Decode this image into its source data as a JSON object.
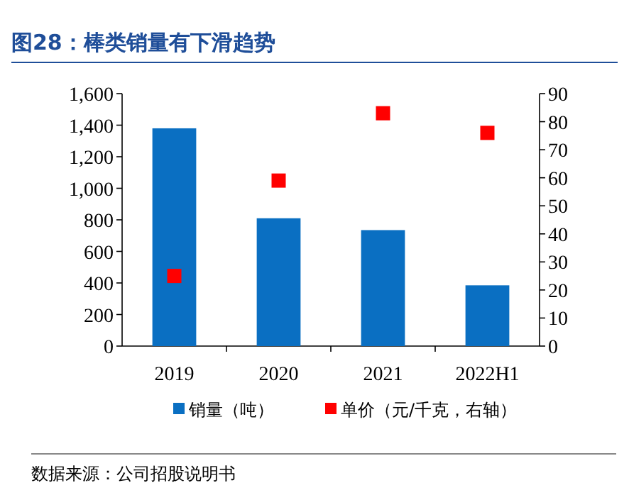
{
  "chart_data": {
    "type": "bar",
    "title": "图28：棒类销量有下滑趋势",
    "categories": [
      "2019",
      "2020",
      "2021",
      "2022H1"
    ],
    "series": [
      {
        "name": "销量（吨）",
        "color": "#0a6fc2",
        "values": [
          1380,
          810,
          735,
          385
        ]
      },
      {
        "name": "单价（元/千克，右轴）",
        "color": "#ff0000",
        "type": "scatter",
        "axis": "y2",
        "marker": "square",
        "values": [
          25,
          59,
          83,
          76
        ]
      }
    ],
    "ylim": [
      0,
      1600
    ],
    "yticks": [
      0,
      200,
      400,
      600,
      800,
      {
        "value": 1000,
        "label": "1,000"
      },
      {
        "value": 1200,
        "label": "1,200"
      },
      {
        "value": 1400,
        "label": "1,400"
      },
      {
        "value": 1600,
        "label": "1,600"
      }
    ],
    "y2lim": [
      0,
      90
    ],
    "y2ticks": [
      0,
      10,
      20,
      30,
      40,
      50,
      60,
      70,
      80,
      90
    ],
    "legend": "bottom",
    "annotations": [
      "数据来源：公司招股说明书"
    ]
  }
}
